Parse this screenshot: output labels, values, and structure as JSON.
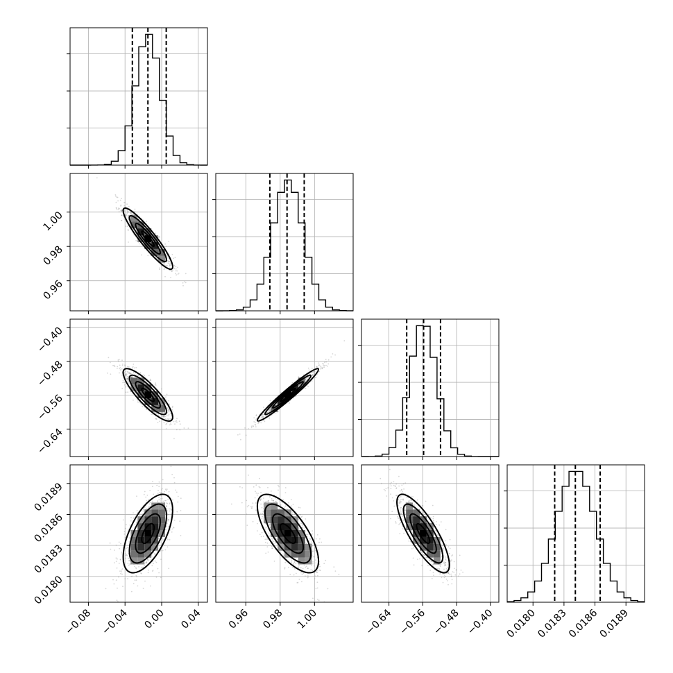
{
  "chart_data": {
    "type": "corner",
    "n_params": 4,
    "grid": true,
    "parameters": [
      {
        "mean": -0.015,
        "std": 0.0135,
        "range": [
          -0.1,
          0.05
        ],
        "quantiles": [
          -0.032,
          -0.015,
          0.005
        ],
        "ticks": [
          -0.08,
          -0.04,
          0.0,
          0.04
        ],
        "tick_labels": [
          "−0.08",
          "−0.04",
          "0.00",
          "0.04"
        ]
      },
      {
        "mean": 0.9845,
        "std": 0.0089,
        "range": [
          0.9425,
          1.0225
        ],
        "quantiles": [
          0.974,
          0.984,
          0.994
        ],
        "ticks": [
          0.96,
          0.98,
          1.0
        ],
        "tick_labels": [
          "0.96",
          "0.98",
          "1.00"
        ]
      },
      {
        "mean": -0.559,
        "std": 0.031,
        "range": [
          -0.705,
          -0.38
        ],
        "quantiles": [
          -0.598,
          -0.558,
          -0.518
        ],
        "ticks": [
          -0.64,
          -0.56,
          -0.48,
          -0.4
        ],
        "tick_labels": [
          "−0.64",
          "−0.56",
          "−0.48",
          "−0.40"
        ]
      },
      {
        "mean": 0.018415,
        "std": 0.00019,
        "range": [
          0.01775,
          0.01908
        ],
        "quantiles": [
          0.01821,
          0.01841,
          0.01865
        ],
        "ticks": [
          0.018,
          0.0183,
          0.0186,
          0.0189
        ],
        "tick_labels": [
          "0.0180",
          "0.0183",
          "0.0186",
          "0.0189"
        ]
      }
    ],
    "correlations": [
      {
        "i": 1,
        "j": 0,
        "r": -0.92
      },
      {
        "i": 2,
        "j": 0,
        "r": -0.85
      },
      {
        "i": 2,
        "j": 1,
        "r": 0.97
      },
      {
        "i": 3,
        "j": 0,
        "r": 0.6
      },
      {
        "i": 3,
        "j": 1,
        "r": -0.7
      },
      {
        "i": 3,
        "j": 2,
        "r": -0.8
      }
    ],
    "hist_bins": 20,
    "contour_levels": [
      0.5,
      1.0,
      1.5,
      2.0
    ]
  }
}
